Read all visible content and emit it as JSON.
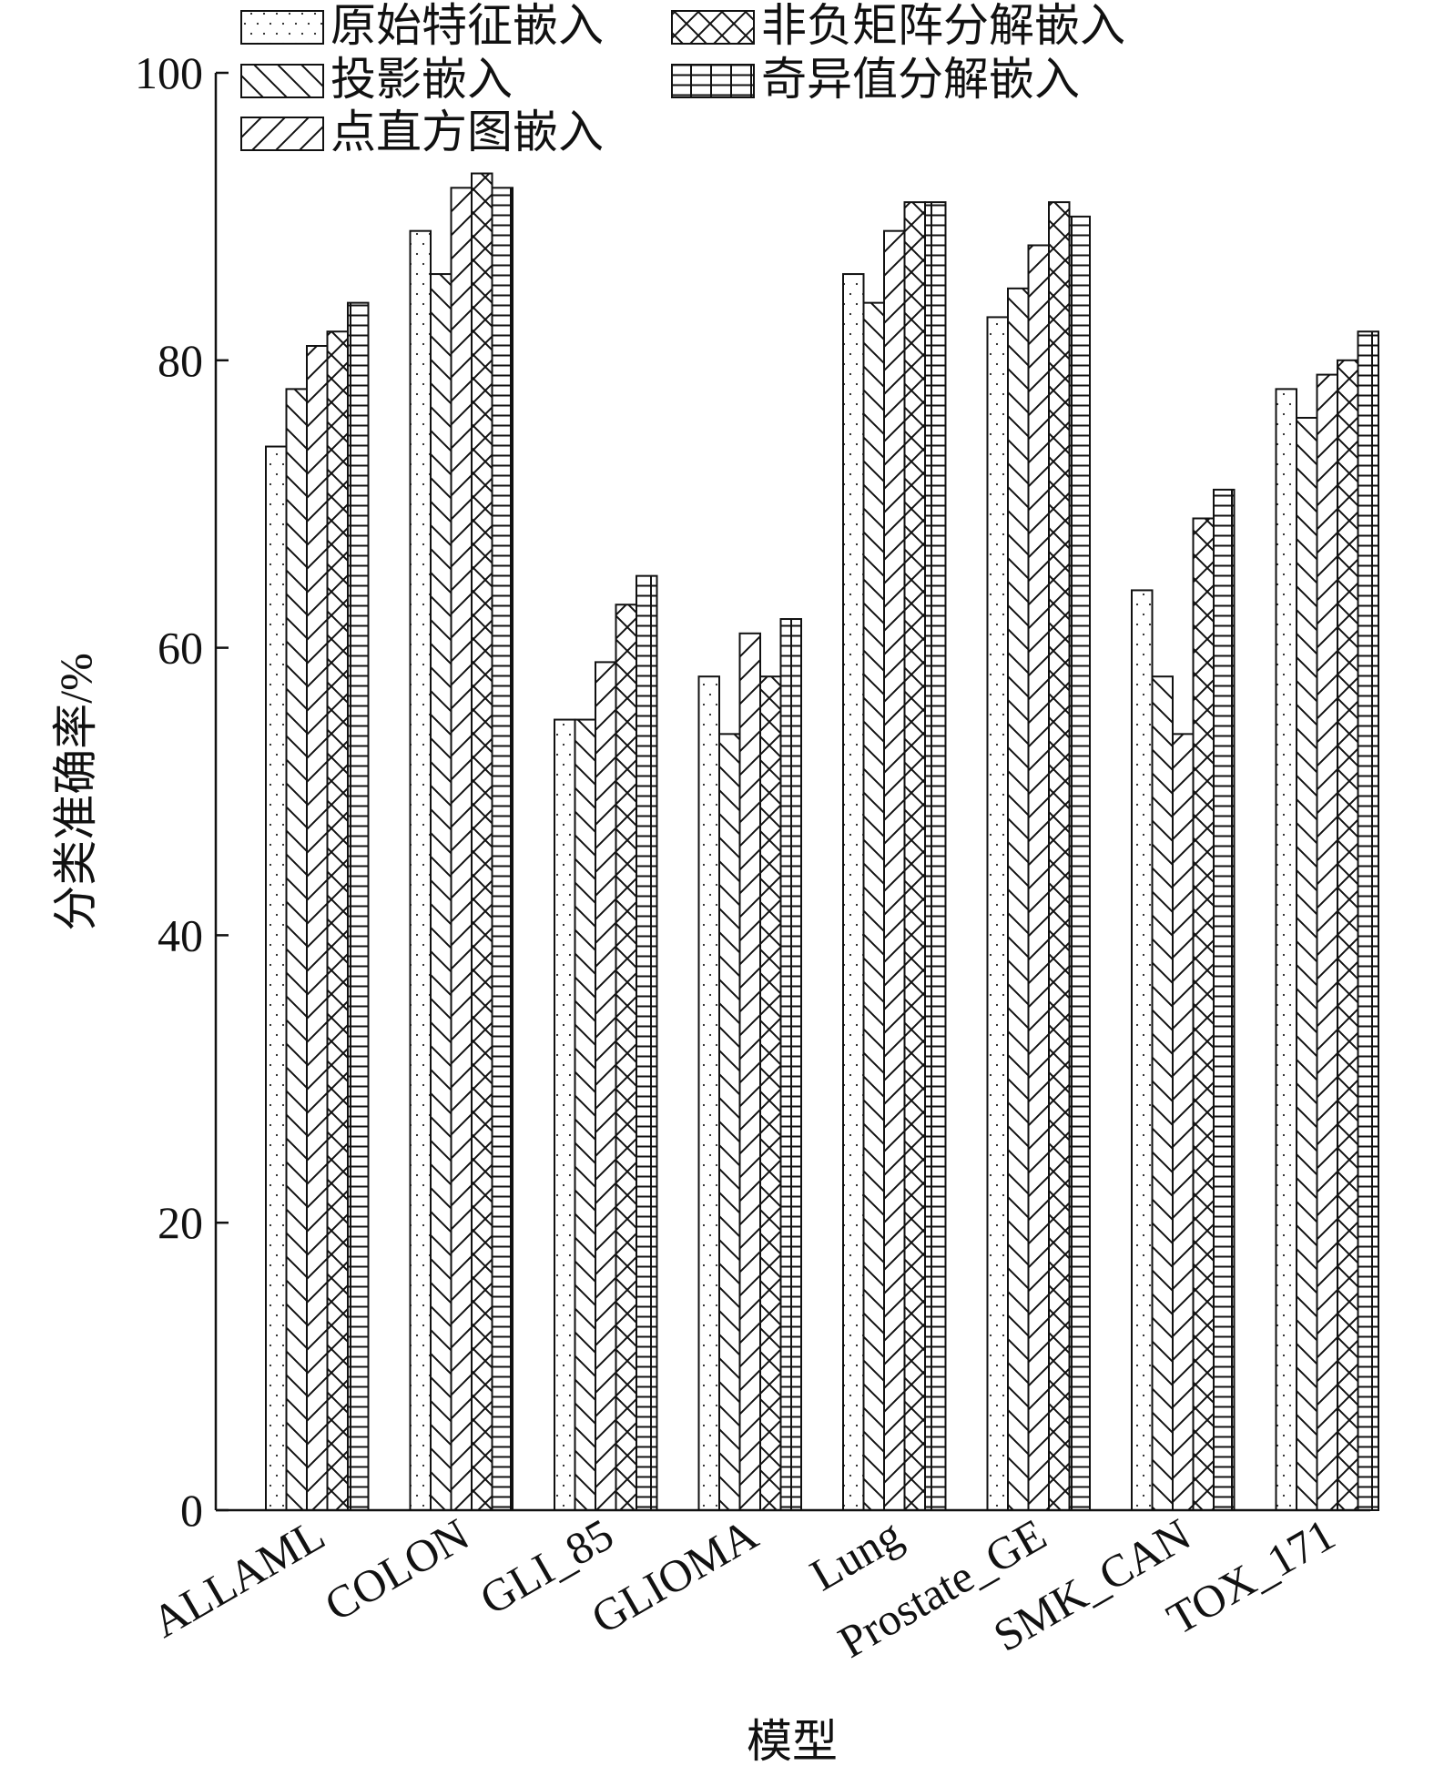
{
  "chart_data": {
    "type": "bar",
    "title": "",
    "xlabel": "模型",
    "ylabel": "分类准确率/%",
    "ylim": [
      0,
      100
    ],
    "yticks": [
      0,
      20,
      40,
      60,
      80,
      100
    ],
    "grid": false,
    "legend_position": "top-left",
    "categories": [
      "ALLAML",
      "COLON",
      "GLI_85",
      "GLIOMA",
      "Lung",
      "Prostate_GE",
      "SMK_CAN",
      "TOX_171"
    ],
    "series": [
      {
        "name": "原始特征嵌入",
        "pattern": "dots",
        "values": [
          74,
          89,
          55,
          58,
          86,
          83,
          64,
          78
        ]
      },
      {
        "name": "投影嵌入",
        "pattern": "backslash",
        "values": [
          78,
          86,
          55,
          54,
          84,
          85,
          58,
          76
        ]
      },
      {
        "name": "点直方图嵌入",
        "pattern": "slash",
        "values": [
          81,
          92,
          59,
          61,
          89,
          88,
          54,
          79
        ]
      },
      {
        "name": "非负矩阵分解嵌入",
        "pattern": "cross",
        "values": [
          82,
          93,
          63,
          58,
          91,
          91,
          69,
          80
        ]
      },
      {
        "name": "奇异值分解嵌入",
        "pattern": "grid",
        "values": [
          84,
          92,
          65,
          62,
          91,
          90,
          71,
          82
        ]
      }
    ]
  }
}
